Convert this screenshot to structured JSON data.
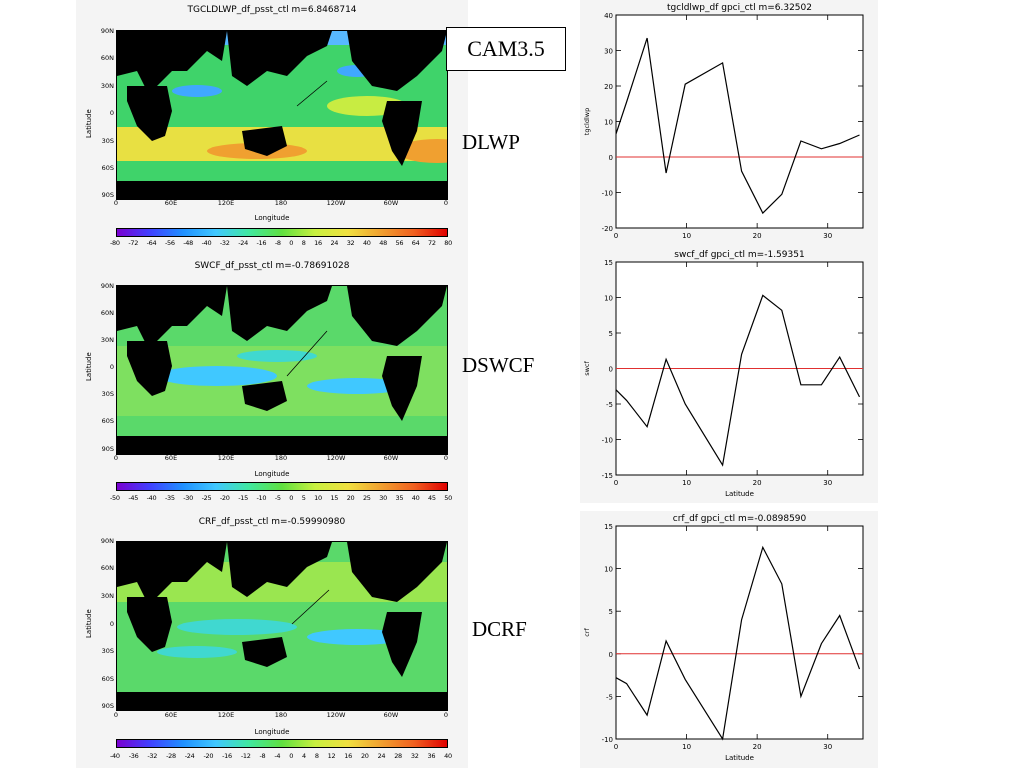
{
  "labels": {
    "model_box": "CAM3.5",
    "dlwp": "DLWP",
    "dswcf": "DSWCF",
    "dcrf": "DCRF"
  },
  "maps": [
    {
      "title": "TGCLDLWP_df_psst_ctl  m=6.8468714",
      "lat_ticks": [
        "90N",
        "60N",
        "30N",
        "0",
        "30S",
        "60S",
        "90S"
      ],
      "lon_ticks": [
        "0",
        "60E",
        "120E",
        "180",
        "120W",
        "60W",
        "0"
      ],
      "lat_name": "Latitude",
      "lon_name": "Longitude",
      "colorbar_labels": [
        "-80",
        "-72",
        "-64",
        "-56",
        "-48",
        "-40",
        "-32",
        "-24",
        "-16",
        "-8",
        "0",
        "8",
        "16",
        "24",
        "32",
        "40",
        "48",
        "56",
        "64",
        "72",
        "80"
      ]
    },
    {
      "title": "SWCF_df_psst_ctl  m=-0.78691028",
      "lat_ticks": [
        "90N",
        "60N",
        "30N",
        "0",
        "30S",
        "60S",
        "90S"
      ],
      "lon_ticks": [
        "0",
        "60E",
        "120E",
        "180",
        "120W",
        "60W",
        "0"
      ],
      "lat_name": "Latitude",
      "lon_name": "Longitude",
      "colorbar_labels": [
        "-50",
        "-45",
        "-40",
        "-35",
        "-30",
        "-25",
        "-20",
        "-15",
        "-10",
        "-5",
        "0",
        "5",
        "10",
        "15",
        "20",
        "25",
        "30",
        "35",
        "40",
        "45",
        "50"
      ]
    },
    {
      "title": "CRF_df_psst_ctl  m=-0.59990980",
      "lat_ticks": [
        "90N",
        "60N",
        "30N",
        "0",
        "30S",
        "60S",
        "90S"
      ],
      "lon_ticks": [
        "0",
        "60E",
        "120E",
        "180",
        "120W",
        "60W",
        "0"
      ],
      "lat_name": "Latitude",
      "lon_name": "Longitude",
      "colorbar_labels": [
        "-40",
        "-36",
        "-32",
        "-28",
        "-24",
        "-20",
        "-16",
        "-12",
        "-8",
        "-4",
        "0",
        "4",
        "8",
        "12",
        "16",
        "20",
        "24",
        "28",
        "32",
        "36",
        "40"
      ]
    }
  ],
  "chart_data": [
    {
      "type": "line",
      "title": "tgcldlwp_df  gpci_ctl  m=6.32502",
      "ylabel": "tgcldlwp",
      "xlabel": "",
      "x": [
        0,
        1.5,
        4.4,
        7.1,
        9.8,
        15.1,
        17.8,
        20.8,
        23.5,
        26.2,
        29.1,
        31.7,
        34.5
      ],
      "y": [
        6.5,
        15.5,
        33.5,
        -4.5,
        20.5,
        26.5,
        -4.0,
        -15.8,
        -10.5,
        4.5,
        2.3,
        3.8,
        6.2
      ],
      "xlim": [
        0,
        35
      ],
      "ylim": [
        -20,
        40
      ],
      "xticks": [
        0,
        10,
        20,
        30
      ],
      "yticks": [
        -20,
        -10,
        0,
        10,
        20,
        30,
        40
      ],
      "zero_line_color": "#e03030"
    },
    {
      "type": "line",
      "title": "swcf_df  gpci_ctl  m=-1.59351",
      "ylabel": "swcf",
      "xlabel": "Latitude",
      "x": [
        0,
        1.5,
        4.4,
        7.1,
        9.8,
        15.1,
        17.8,
        20.8,
        23.5,
        26.2,
        29.1,
        31.7,
        34.5
      ],
      "y": [
        -3.0,
        -4.5,
        -8.2,
        1.3,
        -5.0,
        -13.6,
        2.0,
        10.3,
        8.2,
        -2.3,
        -2.3,
        1.6,
        -4.0
      ],
      "xlim": [
        0,
        35
      ],
      "ylim": [
        -15,
        15
      ],
      "xticks": [
        0,
        10,
        20,
        30
      ],
      "yticks": [
        -15,
        -10,
        -5,
        0,
        5,
        10,
        15
      ],
      "zero_line_color": "#e03030"
    },
    {
      "type": "line",
      "title": "crf_df  gpci_ctl  m=-0.0898590",
      "ylabel": "crf",
      "xlabel": "Latitude",
      "x": [
        0,
        1.5,
        4.4,
        7.1,
        9.8,
        15.1,
        17.8,
        20.8,
        23.5,
        26.2,
        29.1,
        31.7,
        34.5
      ],
      "y": [
        -2.8,
        -3.5,
        -7.2,
        1.5,
        -3.0,
        -10.0,
        4.0,
        12.5,
        8.2,
        -5.0,
        1.2,
        4.5,
        -1.8
      ],
      "xlim": [
        0,
        35
      ],
      "ylim": [
        -10,
        15
      ],
      "xticks": [
        0,
        10,
        20,
        30
      ],
      "yticks": [
        -10,
        -5,
        0,
        5,
        10,
        15
      ],
      "zero_line_color": "#e03030"
    }
  ]
}
